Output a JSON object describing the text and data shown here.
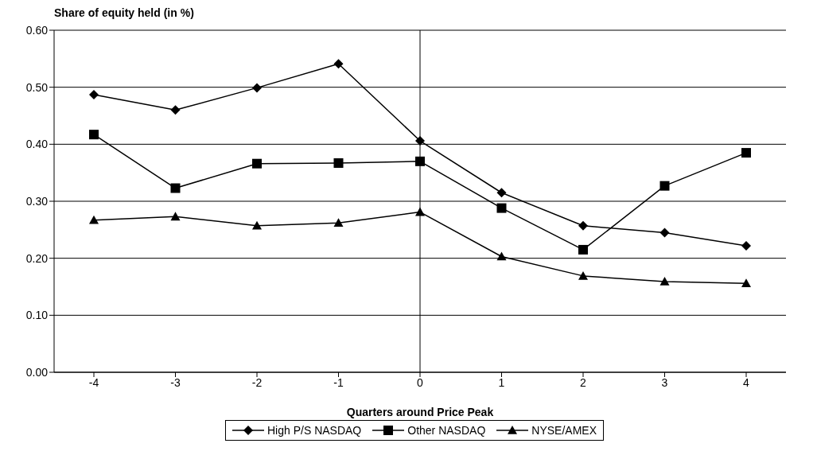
{
  "chart_data": {
    "type": "line",
    "ylabel": "Share of equity held (in %)",
    "xlabel": "Quarters around Price Peak",
    "categories": [
      "-4",
      "-3",
      "-2",
      "-1",
      "0",
      "1",
      "2",
      "3",
      "4"
    ],
    "series": [
      {
        "name": "High P/S NASDAQ",
        "color": "#000000",
        "marker": "diamond",
        "values": [
          0.487,
          0.46,
          0.499,
          0.541,
          0.406,
          0.315,
          0.257,
          0.245,
          0.222
        ]
      },
      {
        "name": "Other NASDAQ",
        "color": "#000000",
        "marker": "square",
        "values": [
          0.417,
          0.323,
          0.366,
          0.367,
          0.37,
          0.288,
          0.215,
          0.327,
          0.385
        ]
      },
      {
        "name": "NYSE/AMEX",
        "color": "#000000",
        "marker": "triangle",
        "values": [
          0.267,
          0.273,
          0.257,
          0.262,
          0.281,
          0.203,
          0.169,
          0.159,
          0.156
        ]
      }
    ],
    "ylim": [
      0,
      0.6
    ],
    "yticks": [
      {
        "value": 0,
        "label": "0.00"
      },
      {
        "value": 0.1,
        "label": "0.10"
      },
      {
        "value": 0.2,
        "label": "0.20"
      },
      {
        "value": 0.3,
        "label": "0.30"
      },
      {
        "value": 0.4,
        "label": "0.40"
      },
      {
        "value": 0.5,
        "label": "0.50"
      },
      {
        "value": 0.6,
        "label": "0.60"
      }
    ],
    "ref_lines": [
      {
        "axis": "x",
        "value": "0",
        "color": "#000000"
      }
    ],
    "grid": "y",
    "legend": "bottom",
    "line_style": "solid"
  }
}
